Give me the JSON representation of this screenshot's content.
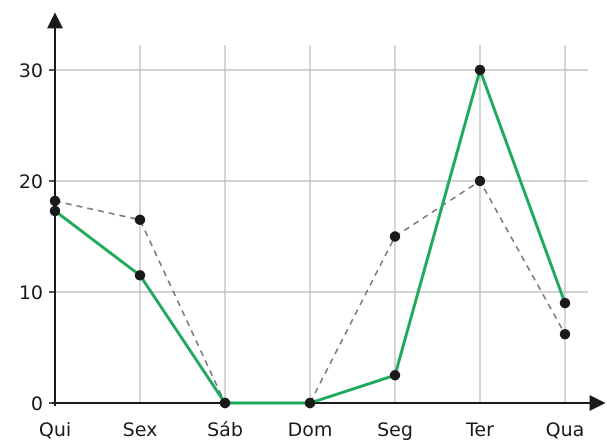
{
  "chart_data": {
    "type": "line",
    "title": "",
    "xlabel": "",
    "ylabel": "",
    "categories": [
      "Qui",
      "Sex",
      "Sáb",
      "Dom",
      "Seg",
      "Ter",
      "Qua"
    ],
    "ylim": [
      0,
      30
    ],
    "y_ticks": [
      "0",
      "10",
      "20",
      "30"
    ],
    "grid": true,
    "legend": "none",
    "series": [
      {
        "style": "solid",
        "color": "#1faa5a",
        "values": [
          17.3,
          11.5,
          0,
          0,
          2.5,
          30,
          9
        ]
      },
      {
        "style": "dashed",
        "color": "#777777",
        "values": [
          18.2,
          16.5,
          0,
          0,
          15,
          20,
          6.2
        ]
      }
    ],
    "marker_color": "#1a1a1a"
  }
}
